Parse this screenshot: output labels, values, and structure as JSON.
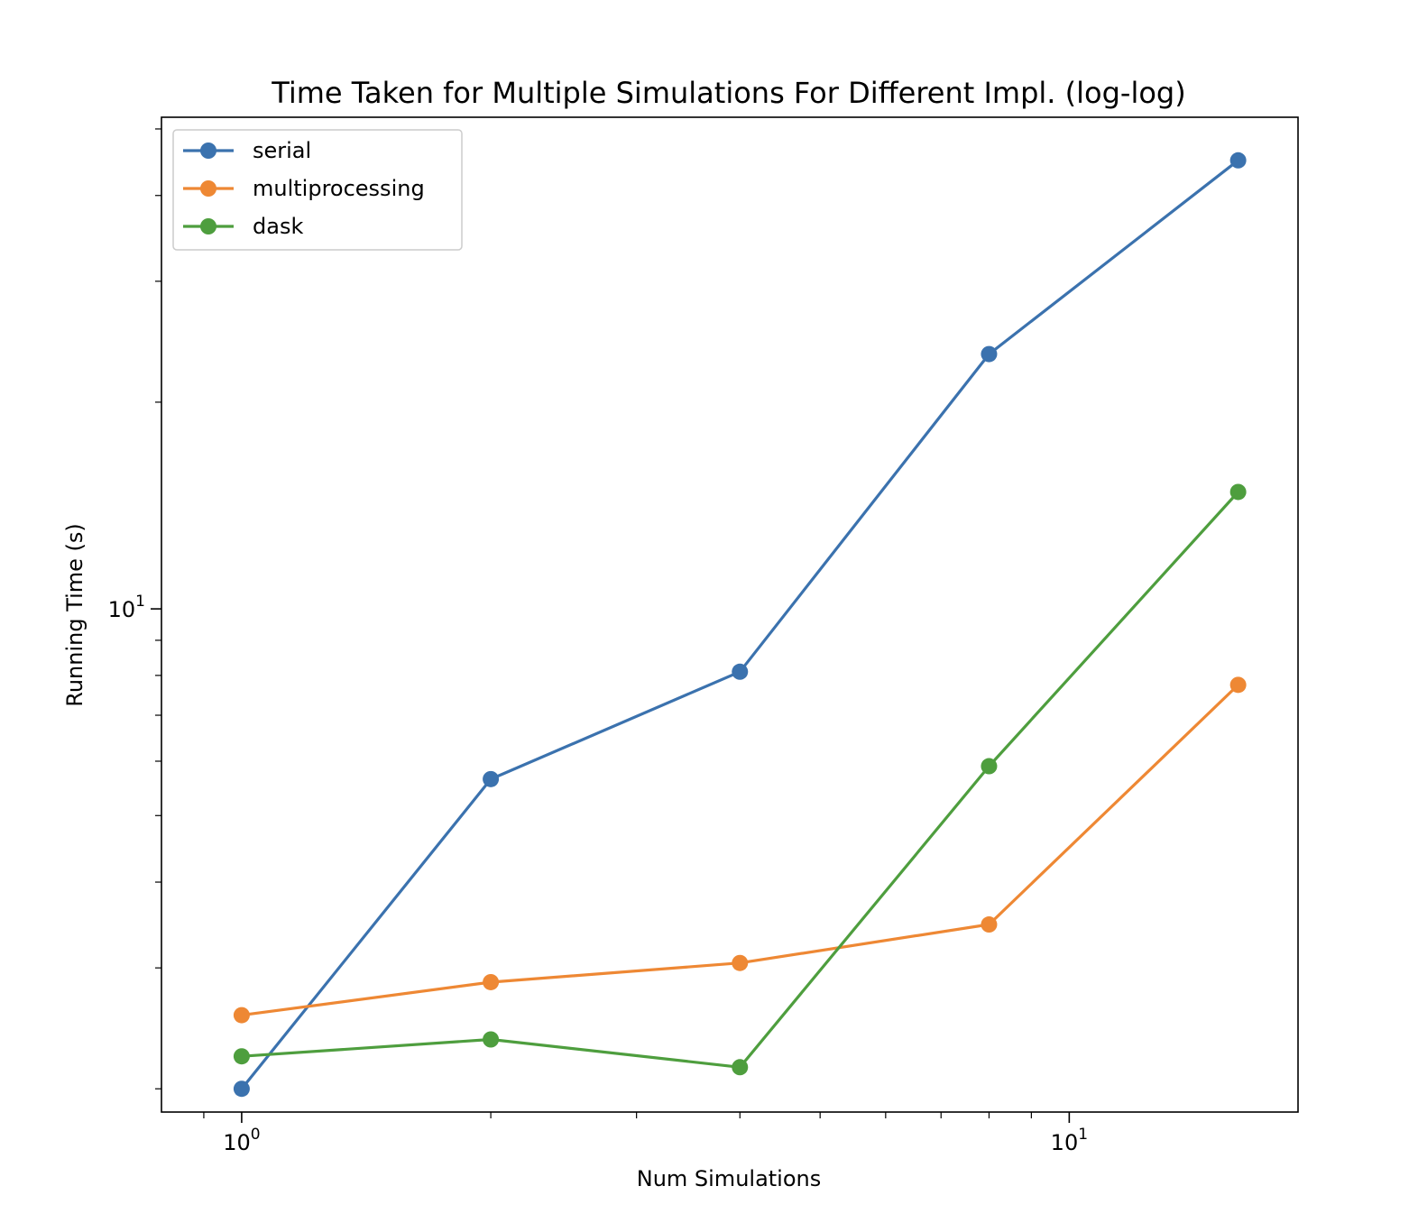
{
  "chart_data": {
    "type": "line",
    "title": "Time Taken for Multiple Simulations For Different Impl. (log-log)",
    "xlabel": "Num Simulations",
    "ylabel": "Running Time (s)",
    "xscale": "log",
    "yscale": "log",
    "xlim": [
      0.8,
      18.9
    ],
    "ylim": [
      1.85,
      52
    ],
    "grid": false,
    "legend_position": "top-left",
    "x": [
      1,
      2,
      4,
      8,
      16
    ],
    "x_ticks": [
      {
        "value": 1,
        "base": "10",
        "exp": "0"
      },
      {
        "value": 10,
        "base": "10",
        "exp": "1"
      }
    ],
    "y_ticks": [
      {
        "value": 10,
        "base": "10",
        "exp": "1"
      }
    ],
    "series": [
      {
        "name": "serial",
        "color": "#3b72ae",
        "values": [
          2.0,
          5.65,
          8.1,
          23.5,
          45.0
        ]
      },
      {
        "name": "multiprocessing",
        "color": "#ee8834",
        "values": [
          2.56,
          2.86,
          3.05,
          3.47,
          7.75
        ]
      },
      {
        "name": "dask",
        "color": "#4e9e3e",
        "values": [
          2.23,
          2.36,
          2.15,
          5.9,
          14.8
        ]
      }
    ]
  }
}
